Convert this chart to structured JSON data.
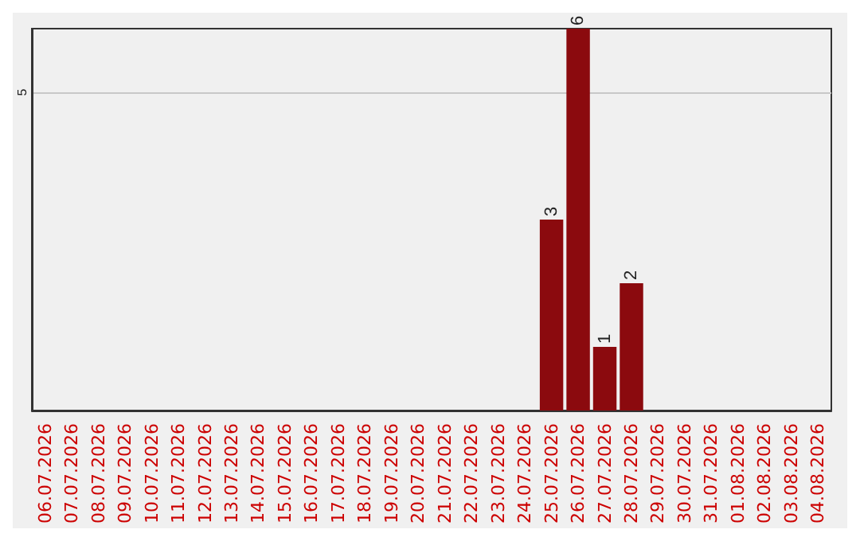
{
  "chart_data": {
    "type": "bar",
    "categories": [
      "06.07.2026",
      "07.07.2026",
      "08.07.2026",
      "09.07.2026",
      "10.07.2026",
      "11.07.2026",
      "12.07.2026",
      "13.07.2026",
      "14.07.2026",
      "15.07.2026",
      "16.07.2026",
      "17.07.2026",
      "18.07.2026",
      "19.07.2026",
      "20.07.2026",
      "21.07.2026",
      "22.07.2026",
      "23.07.2026",
      "24.07.2026",
      "25.07.2026",
      "26.07.2026",
      "27.07.2026",
      "28.07.2026",
      "29.07.2026",
      "30.07.2026",
      "31.07.2026",
      "01.08.2026",
      "02.08.2026",
      "03.08.2026",
      "04.08.2026"
    ],
    "values": [
      null,
      null,
      null,
      null,
      null,
      null,
      null,
      null,
      null,
      null,
      null,
      null,
      null,
      null,
      null,
      null,
      null,
      null,
      null,
      3,
      6,
      1,
      2,
      null,
      null,
      null,
      null,
      null,
      null,
      null
    ],
    "color": "#8b0a0e",
    "ylim": [
      0,
      6
    ],
    "yticks": [
      5
    ],
    "grid": "y",
    "data_labels": true
  }
}
